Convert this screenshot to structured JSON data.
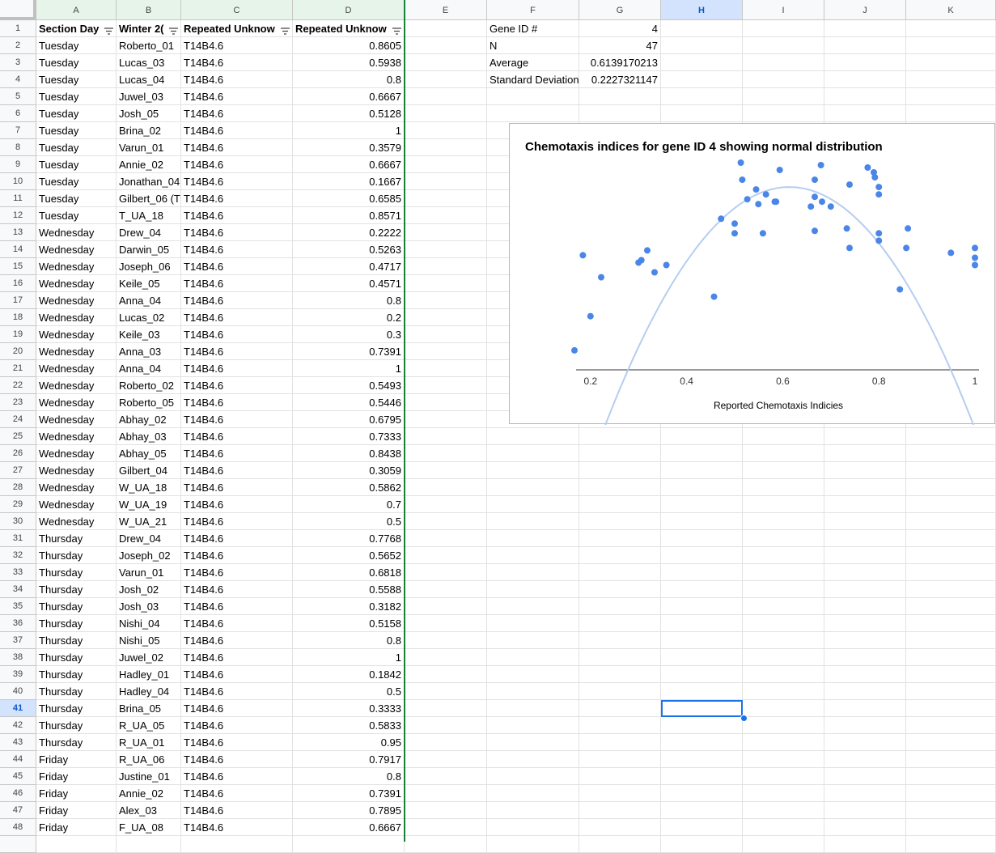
{
  "columns": [
    "A",
    "B",
    "C",
    "D",
    "E",
    "F",
    "G",
    "H",
    "I",
    "J",
    "K"
  ],
  "selected_column": "H",
  "selected_row": 41,
  "headers": {
    "section_day": "Section Day",
    "winter": "Winter 2(",
    "repeated_1": "Repeated Unknow",
    "repeated_2": "Repeated Unknow"
  },
  "rows": [
    {
      "day": "Tuesday",
      "name": "Roberto_01",
      "gene": "T14B4.6",
      "val": "0.8605"
    },
    {
      "day": "Tuesday",
      "name": "Lucas_03",
      "gene": "T14B4.6",
      "val": "0.5938"
    },
    {
      "day": "Tuesday",
      "name": "Lucas_04",
      "gene": "T14B4.6",
      "val": "0.8"
    },
    {
      "day": "Tuesday",
      "name": "Juwel_03",
      "gene": "T14B4.6",
      "val": "0.6667"
    },
    {
      "day": "Tuesday",
      "name": "Josh_05",
      "gene": "T14B4.6",
      "val": "0.5128"
    },
    {
      "day": "Tuesday",
      "name": "Brina_02",
      "gene": "T14B4.6",
      "val": "1"
    },
    {
      "day": "Tuesday",
      "name": "Varun_01",
      "gene": "T14B4.6",
      "val": "0.3579"
    },
    {
      "day": "Tuesday",
      "name": "Annie_02",
      "gene": "T14B4.6",
      "val": "0.6667"
    },
    {
      "day": "Tuesday",
      "name": "Jonathan_04",
      "gene": "T14B4.6",
      "val": "0.1667"
    },
    {
      "day": "Tuesday",
      "name": "Gilbert_06 (T",
      "gene": "T14B4.6",
      "val": "0.6585"
    },
    {
      "day": "Tuesday",
      "name": "T_UA_18",
      "gene": "T14B4.6",
      "val": "0.8571"
    },
    {
      "day": "Wednesday",
      "name": "Drew_04",
      "gene": "T14B4.6",
      "val": "0.2222"
    },
    {
      "day": "Wednesday",
      "name": "Darwin_05",
      "gene": "T14B4.6",
      "val": "0.5263"
    },
    {
      "day": "Wednesday",
      "name": "Joseph_06",
      "gene": "T14B4.6",
      "val": "0.4717"
    },
    {
      "day": "Wednesday",
      "name": "Keile_05",
      "gene": "T14B4.6",
      "val": "0.4571"
    },
    {
      "day": "Wednesday",
      "name": "Anna_04",
      "gene": "T14B4.6",
      "val": "0.8"
    },
    {
      "day": "Wednesday",
      "name": "Lucas_02",
      "gene": "T14B4.6",
      "val": "0.2"
    },
    {
      "day": "Wednesday",
      "name": "Keile_03",
      "gene": "T14B4.6",
      "val": "0.3"
    },
    {
      "day": "Wednesday",
      "name": "Anna_03",
      "gene": "T14B4.6",
      "val": "0.7391"
    },
    {
      "day": "Wednesday",
      "name": "Anna_04",
      "gene": "T14B4.6",
      "val": "1"
    },
    {
      "day": "Wednesday",
      "name": "Roberto_02",
      "gene": "T14B4.6",
      "val": "0.5493"
    },
    {
      "day": "Wednesday",
      "name": "Roberto_05",
      "gene": "T14B4.6",
      "val": "0.5446"
    },
    {
      "day": "Wednesday",
      "name": "Abhay_02",
      "gene": "T14B4.6",
      "val": "0.6795"
    },
    {
      "day": "Wednesday",
      "name": "Abhay_03",
      "gene": "T14B4.6",
      "val": "0.7333"
    },
    {
      "day": "Wednesday",
      "name": "Abhay_05",
      "gene": "T14B4.6",
      "val": "0.8438"
    },
    {
      "day": "Wednesday",
      "name": "Gilbert_04",
      "gene": "T14B4.6",
      "val": "0.3059"
    },
    {
      "day": "Wednesday",
      "name": "W_UA_18",
      "gene": "T14B4.6",
      "val": "0.5862"
    },
    {
      "day": "Wednesday",
      "name": "W_UA_19",
      "gene": "T14B4.6",
      "val": "0.7"
    },
    {
      "day": "Wednesday",
      "name": "W_UA_21",
      "gene": "T14B4.6",
      "val": "0.5"
    },
    {
      "day": "Thursday",
      "name": "Drew_04",
      "gene": "T14B4.6",
      "val": "0.7768"
    },
    {
      "day": "Thursday",
      "name": "Joseph_02",
      "gene": "T14B4.6",
      "val": "0.5652"
    },
    {
      "day": "Thursday",
      "name": "Varun_01",
      "gene": "T14B4.6",
      "val": "0.6818"
    },
    {
      "day": "Thursday",
      "name": "Josh_02",
      "gene": "T14B4.6",
      "val": "0.5588"
    },
    {
      "day": "Thursday",
      "name": "Josh_03",
      "gene": "T14B4.6",
      "val": "0.3182"
    },
    {
      "day": "Thursday",
      "name": "Nishi_04",
      "gene": "T14B4.6",
      "val": "0.5158"
    },
    {
      "day": "Thursday",
      "name": "Nishi_05",
      "gene": "T14B4.6",
      "val": "0.8"
    },
    {
      "day": "Thursday",
      "name": "Juwel_02",
      "gene": "T14B4.6",
      "val": "1"
    },
    {
      "day": "Thursday",
      "name": "Hadley_01",
      "gene": "T14B4.6",
      "val": "0.1842"
    },
    {
      "day": "Thursday",
      "name": "Hadley_04",
      "gene": "T14B4.6",
      "val": "0.5"
    },
    {
      "day": "Thursday",
      "name": "Brina_05",
      "gene": "T14B4.6",
      "val": "0.3333"
    },
    {
      "day": "Thursday",
      "name": "R_UA_05",
      "gene": "T14B4.6",
      "val": "0.5833"
    },
    {
      "day": "Thursday",
      "name": "R_UA_01",
      "gene": "T14B4.6",
      "val": "0.95"
    },
    {
      "day": "Friday",
      "name": "R_UA_06",
      "gene": "T14B4.6",
      "val": "0.7917"
    },
    {
      "day": "Friday",
      "name": "Justine_01",
      "gene": "T14B4.6",
      "val": "0.8"
    },
    {
      "day": "Friday",
      "name": "Annie_02",
      "gene": "T14B4.6",
      "val": "0.7391"
    },
    {
      "day": "Friday",
      "name": "Alex_03",
      "gene": "T14B4.6",
      "val": "0.7895"
    },
    {
      "day": "Friday",
      "name": "F_UA_08",
      "gene": "T14B4.6",
      "val": "0.6667"
    }
  ],
  "stats": [
    {
      "label": "Gene ID #",
      "value": "4"
    },
    {
      "label": "N",
      "value": "47"
    },
    {
      "label": "Average",
      "value": "0.6139170213"
    },
    {
      "label": "Standard Deviation",
      "value": "0.2227321147"
    }
  ],
  "chart_data": {
    "type": "scatter",
    "title": "Chemotaxis indices for gene ID 4 showing normal distribution",
    "xlabel": "Reported Chemotaxis Indicies",
    "ylabel": "",
    "xlim": [
      0.17,
      1.0
    ],
    "x_ticks": [
      "0.2",
      "0.4",
      "0.6",
      "0.8",
      "1"
    ],
    "grid": false,
    "legend": "none",
    "point_color": "#4a86e8",
    "curve_color": "#b6cdf0",
    "curve": {
      "mean": 0.6139,
      "sd": 0.2227
    },
    "x": [
      0.8605,
      0.5938,
      0.8,
      0.6667,
      0.5128,
      1,
      0.3579,
      0.6667,
      0.1667,
      0.6585,
      0.8571,
      0.2222,
      0.5263,
      0.4717,
      0.4571,
      0.8,
      0.2,
      0.3,
      0.7391,
      1,
      0.5493,
      0.5446,
      0.6795,
      0.7333,
      0.8438,
      0.3059,
      0.5862,
      0.7,
      0.5,
      0.7768,
      0.5652,
      0.6818,
      0.5588,
      0.3182,
      0.5158,
      0.8,
      1,
      0.1842,
      0.5,
      0.3333,
      0.5833,
      0.95,
      0.7917,
      0.8,
      0.7391,
      0.7895,
      0.6667
    ],
    "y": [
      0.78,
      1.02,
      0.76,
      0.77,
      1.05,
      0.66,
      0.63,
      0.98,
      0.28,
      0.87,
      0.7,
      0.58,
      0.9,
      0.82,
      0.5,
      0.73,
      0.42,
      0.64,
      0.7,
      0.7,
      0.88,
      0.94,
      1.04,
      0.78,
      0.53,
      0.65,
      0.89,
      0.87,
      0.76,
      1.03,
      0.92,
      0.89,
      0.76,
      0.69,
      0.98,
      0.95,
      0.63,
      0.67,
      0.8,
      0.6,
      0.89,
      0.68,
      0.99,
      0.92,
      0.96,
      1.01,
      0.91
    ]
  }
}
